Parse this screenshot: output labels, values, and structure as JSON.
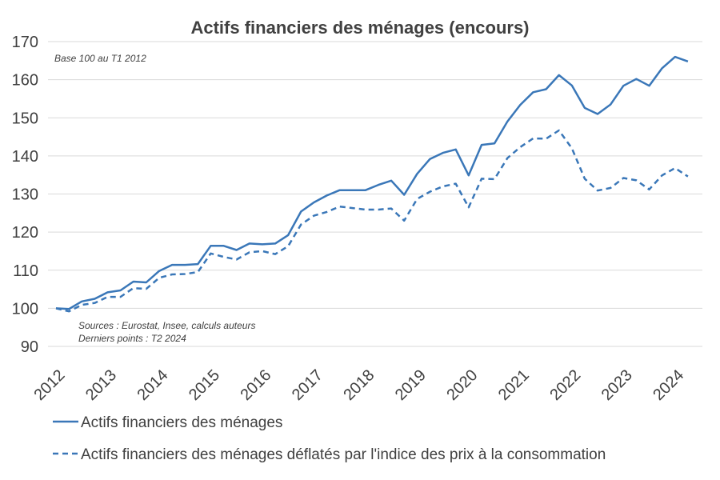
{
  "chart_data": {
    "type": "line",
    "title": "Actifs financiers des ménages (encours)",
    "note_base": "Base 100 au T1 2012",
    "note_sources": "Sources : Eurostat, Insee, calculs auteurs",
    "note_last": "Derniers points : T2 2024",
    "ylim": [
      90,
      170
    ],
    "yticks": [
      90,
      100,
      110,
      120,
      130,
      140,
      150,
      160,
      170
    ],
    "xlim": [
      2012,
      2024.5
    ],
    "xticks": [
      "2012",
      "2013",
      "2014",
      "2015",
      "2016",
      "2017",
      "2018",
      "2019",
      "2020",
      "2021",
      "2022",
      "2023",
      "2024"
    ],
    "grid": true,
    "legend_position": "bottom",
    "series": [
      {
        "name": "Actifs financiers des ménages",
        "style": "solid",
        "color": "#3a77b8",
        "x": [
          2012,
          2012.25,
          2012.5,
          2012.75,
          2013,
          2013.25,
          2013.5,
          2013.75,
          2014,
          2014.25,
          2014.5,
          2014.75,
          2015,
          2015.25,
          2015.5,
          2015.75,
          2016,
          2016.25,
          2016.5,
          2016.75,
          2017,
          2017.25,
          2017.5,
          2017.75,
          2018,
          2018.25,
          2018.5,
          2018.75,
          2019,
          2019.25,
          2019.5,
          2019.75,
          2020,
          2020.25,
          2020.5,
          2020.75,
          2021,
          2021.25,
          2021.5,
          2021.75,
          2022,
          2022.25,
          2022.5,
          2022.75,
          2023,
          2023.25,
          2023.5,
          2023.75,
          2024,
          2024.25
        ],
        "values": [
          100,
          99.8,
          101.8,
          102.5,
          104.2,
          104.7,
          107,
          106.8,
          109.8,
          111.4,
          111.4,
          111.6,
          116.4,
          116.4,
          115.3,
          117,
          116.8,
          117,
          119.2,
          125.4,
          127.8,
          129.6,
          131,
          131,
          131,
          132.4,
          133.5,
          129.8,
          135.3,
          139.2,
          140.8,
          141.7,
          134.9,
          142.9,
          143.3,
          149,
          153.4,
          156.7,
          157.5,
          161.2,
          158.5,
          152.6,
          151,
          153.5,
          158.4,
          160.2,
          158.4,
          163,
          166,
          164.8
        ]
      },
      {
        "name": "Actifs financiers des ménages déflatés par l'indice des prix à la consommation",
        "style": "dashed",
        "color": "#3a77b8",
        "x": [
          2012,
          2012.25,
          2012.5,
          2012.75,
          2013,
          2013.25,
          2013.5,
          2013.75,
          2014,
          2014.25,
          2014.5,
          2014.75,
          2015,
          2015.25,
          2015.5,
          2015.75,
          2016,
          2016.25,
          2016.5,
          2016.75,
          2017,
          2017.25,
          2017.5,
          2017.75,
          2018,
          2018.25,
          2018.5,
          2018.75,
          2019,
          2019.25,
          2019.5,
          2019.75,
          2020,
          2020.25,
          2020.5,
          2020.75,
          2021,
          2021.25,
          2021.5,
          2021.75,
          2022,
          2022.25,
          2022.5,
          2022.75,
          2023,
          2023.25,
          2023.5,
          2023.75,
          2024,
          2024.25
        ],
        "values": [
          100,
          99.2,
          100.9,
          101.4,
          103,
          103,
          105.3,
          105.1,
          108,
          108.9,
          109,
          109.5,
          114.4,
          113.5,
          112.8,
          114.7,
          115,
          114.2,
          116.3,
          122,
          124.3,
          125.3,
          126.7,
          126.3,
          125.9,
          125.9,
          126.2,
          123,
          128.7,
          130.6,
          132,
          132.7,
          126.5,
          134,
          133.9,
          139.4,
          142.3,
          144.6,
          144.5,
          146.7,
          142,
          134,
          130.9,
          131.6,
          134.2,
          133.6,
          131.2,
          134.9,
          136.8,
          134.6
        ]
      }
    ]
  }
}
